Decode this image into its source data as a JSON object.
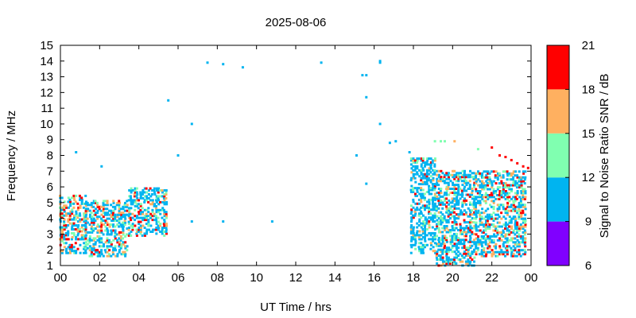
{
  "chart_data": {
    "type": "scatter",
    "title": "2025-08-06",
    "xlabel": "UT Time / hrs",
    "ylabel": "Frequency / MHz",
    "xlim": [
      0,
      24
    ],
    "ylim": [
      1,
      15
    ],
    "x_tick_labels": [
      "00",
      "02",
      "04",
      "06",
      "08",
      "10",
      "12",
      "14",
      "16",
      "18",
      "20",
      "22",
      "00"
    ],
    "y_ticks": [
      1,
      2,
      3,
      4,
      5,
      6,
      7,
      8,
      9,
      10,
      11,
      12,
      13,
      14,
      15
    ],
    "colorbar": {
      "label": "Signal to Noise Ratio SNR / dB",
      "ticks": [
        6,
        9,
        12,
        15,
        18,
        21
      ],
      "bands": [
        {
          "min": 6,
          "max": 9,
          "color": "#8000ff"
        },
        {
          "min": 9,
          "max": 12,
          "color": "#00b4f0"
        },
        {
          "min": 12,
          "max": 15,
          "color": "#80ffb0"
        },
        {
          "min": 15,
          "max": 18,
          "color": "#ffb060"
        },
        {
          "min": 18,
          "max": 21,
          "color": "#ff0000"
        }
      ]
    },
    "regions": [
      {
        "x0": 0.0,
        "x1": 1.3,
        "f0": 1.8,
        "f1": 5.5,
        "snr_mix": [
          0.45,
          0.62,
          0.82
        ]
      },
      {
        "x0": 1.3,
        "x1": 3.5,
        "f0": 1.6,
        "f1": 5.2,
        "snr_mix": [
          0.55,
          0.72,
          0.88
        ]
      },
      {
        "x0": 3.5,
        "x1": 5.4,
        "f0": 2.9,
        "f1": 6.0,
        "snr_mix": [
          0.65,
          0.8,
          0.9
        ]
      },
      {
        "x0": 17.9,
        "x1": 19.2,
        "f0": 1.8,
        "f1": 7.8,
        "snr_mix": [
          0.75,
          0.9,
          0.96
        ]
      },
      {
        "x0": 19.2,
        "x1": 21.2,
        "f0": 1.0,
        "f1": 7.0,
        "snr_mix": [
          0.62,
          0.78,
          0.9
        ]
      },
      {
        "x0": 21.2,
        "x1": 23.8,
        "f0": 1.6,
        "f1": 7.0,
        "snr_mix": [
          0.5,
          0.7,
          0.85
        ]
      }
    ],
    "points": [
      {
        "t": 0.8,
        "f": 8.2,
        "snr": 10
      },
      {
        "t": 2.1,
        "f": 7.3,
        "snr": 10
      },
      {
        "t": 5.5,
        "f": 11.5,
        "snr": 10
      },
      {
        "t": 6.0,
        "f": 8.0,
        "snr": 10
      },
      {
        "t": 6.7,
        "f": 10.0,
        "snr": 10
      },
      {
        "t": 6.7,
        "f": 3.8,
        "snr": 10
      },
      {
        "t": 7.5,
        "f": 13.9,
        "snr": 10
      },
      {
        "t": 8.3,
        "f": 13.8,
        "snr": 10
      },
      {
        "t": 8.3,
        "f": 3.8,
        "snr": 10
      },
      {
        "t": 9.3,
        "f": 13.6,
        "snr": 10
      },
      {
        "t": 10.8,
        "f": 3.8,
        "snr": 10
      },
      {
        "t": 13.3,
        "f": 13.9,
        "snr": 10
      },
      {
        "t": 15.1,
        "f": 8.0,
        "snr": 10
      },
      {
        "t": 15.4,
        "f": 13.1,
        "snr": 10
      },
      {
        "t": 15.6,
        "f": 13.1,
        "snr": 10
      },
      {
        "t": 15.6,
        "f": 11.7,
        "snr": 10
      },
      {
        "t": 15.6,
        "f": 6.2,
        "snr": 10
      },
      {
        "t": 16.3,
        "f": 14.0,
        "snr": 10
      },
      {
        "t": 16.3,
        "f": 13.9,
        "snr": 10
      },
      {
        "t": 16.3,
        "f": 10.0,
        "snr": 10
      },
      {
        "t": 16.8,
        "f": 8.8,
        "snr": 10
      },
      {
        "t": 17.1,
        "f": 8.9,
        "snr": 10
      },
      {
        "t": 17.8,
        "f": 8.2,
        "snr": 10
      },
      {
        "t": 19.1,
        "f": 8.9,
        "snr": 13
      },
      {
        "t": 19.4,
        "f": 8.9,
        "snr": 13
      },
      {
        "t": 19.6,
        "f": 8.9,
        "snr": 13
      },
      {
        "t": 20.1,
        "f": 8.9,
        "snr": 16
      },
      {
        "t": 21.3,
        "f": 8.4,
        "snr": 13
      },
      {
        "t": 22.0,
        "f": 8.5,
        "snr": 19
      },
      {
        "t": 22.4,
        "f": 8.0,
        "snr": 19
      },
      {
        "t": 22.7,
        "f": 7.9,
        "snr": 19
      },
      {
        "t": 23.0,
        "f": 7.7,
        "snr": 19
      },
      {
        "t": 23.3,
        "f": 7.5,
        "snr": 19
      },
      {
        "t": 23.6,
        "f": 7.3,
        "snr": 19
      },
      {
        "t": 23.85,
        "f": 7.2,
        "snr": 19
      },
      {
        "t": 20.5,
        "f": 1.0,
        "snr": 10
      }
    ]
  }
}
